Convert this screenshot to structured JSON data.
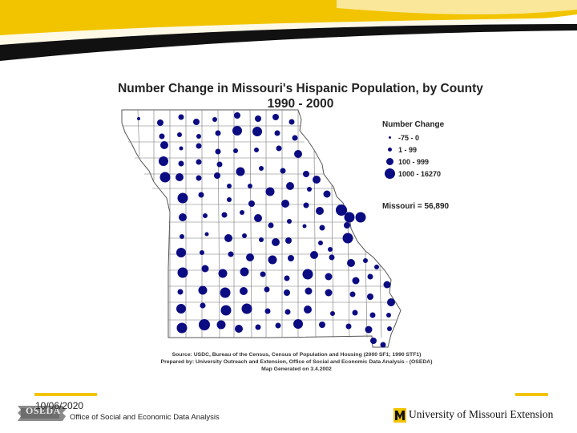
{
  "map": {
    "title": "Number Change in Missouri's Hispanic Population, by County",
    "subtitle": "1990 - 2000",
    "legend": {
      "title": "Number Change",
      "items": [
        {
          "label": "-75 - 0",
          "size": "smallest"
        },
        {
          "label": "1 - 99",
          "size": "small"
        },
        {
          "label": "100 - 999",
          "size": "medium"
        },
        {
          "label": "1000 - 16270",
          "size": "large"
        }
      ]
    },
    "state_total": "Missouri = 56,890",
    "symbol_color": "#0b0c82",
    "source_lines": [
      "Source: USDC, Bureau of the Census, Census of Population and Housing (2000 SF1; 1990 STF1)",
      "Prepared by: University Outreach and Extension, Office of Social and Economic Data Analysis - (OSEDA)",
      "Map Generated on 3.4.2002"
    ]
  },
  "footer": {
    "date": "10/06/2020",
    "org": "Office of Social and Economic Data Analysis",
    "logo_text": "OSEDA",
    "extension_name": "University of Missouri Extension"
  },
  "theme": {
    "accent": "#f2c400",
    "banner": "#111111"
  }
}
